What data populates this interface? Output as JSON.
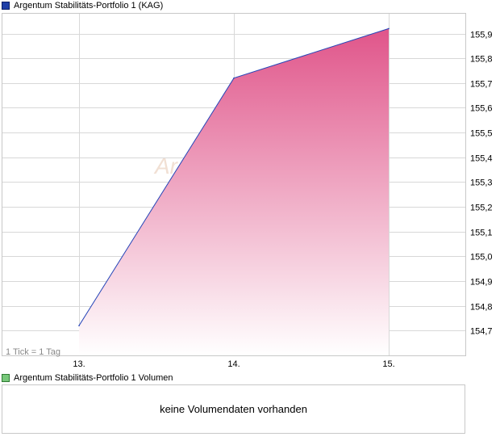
{
  "legend_price": "Argentum Stabilitäts-Portfolio 1 (KAG)",
  "legend_volume": "Argentum Stabilitäts-Portfolio 1 Volumen",
  "tick_note": "1 Tick = 1 Tag",
  "watermark": "Ar",
  "no_volume_text": "keine Volumendaten vorhanden",
  "colors": {
    "line": "#2545b8",
    "fill_top": "#e0558a",
    "fill_bottom": "#ffffff",
    "grid": "#d8d8d8",
    "border": "#c8c8c8"
  },
  "chart_data": {
    "type": "area",
    "x": [
      "13.",
      "14.",
      "15."
    ],
    "series": [
      {
        "values": [
          154.72,
          155.72,
          155.92
        ]
      }
    ],
    "ylim": [
      154.6,
      155.98
    ],
    "yticks": [
      "154,7",
      "154,8",
      "154,9",
      "155,0",
      "155,1",
      "155,2",
      "155,3",
      "155,4",
      "155,5",
      "155,6",
      "155,7",
      "155,8",
      "155,9"
    ],
    "ytick_values": [
      154.7,
      154.8,
      154.9,
      155.0,
      155.1,
      155.2,
      155.3,
      155.4,
      155.5,
      155.6,
      155.7,
      155.8,
      155.9
    ],
    "grid": true,
    "axis_position": "right"
  }
}
